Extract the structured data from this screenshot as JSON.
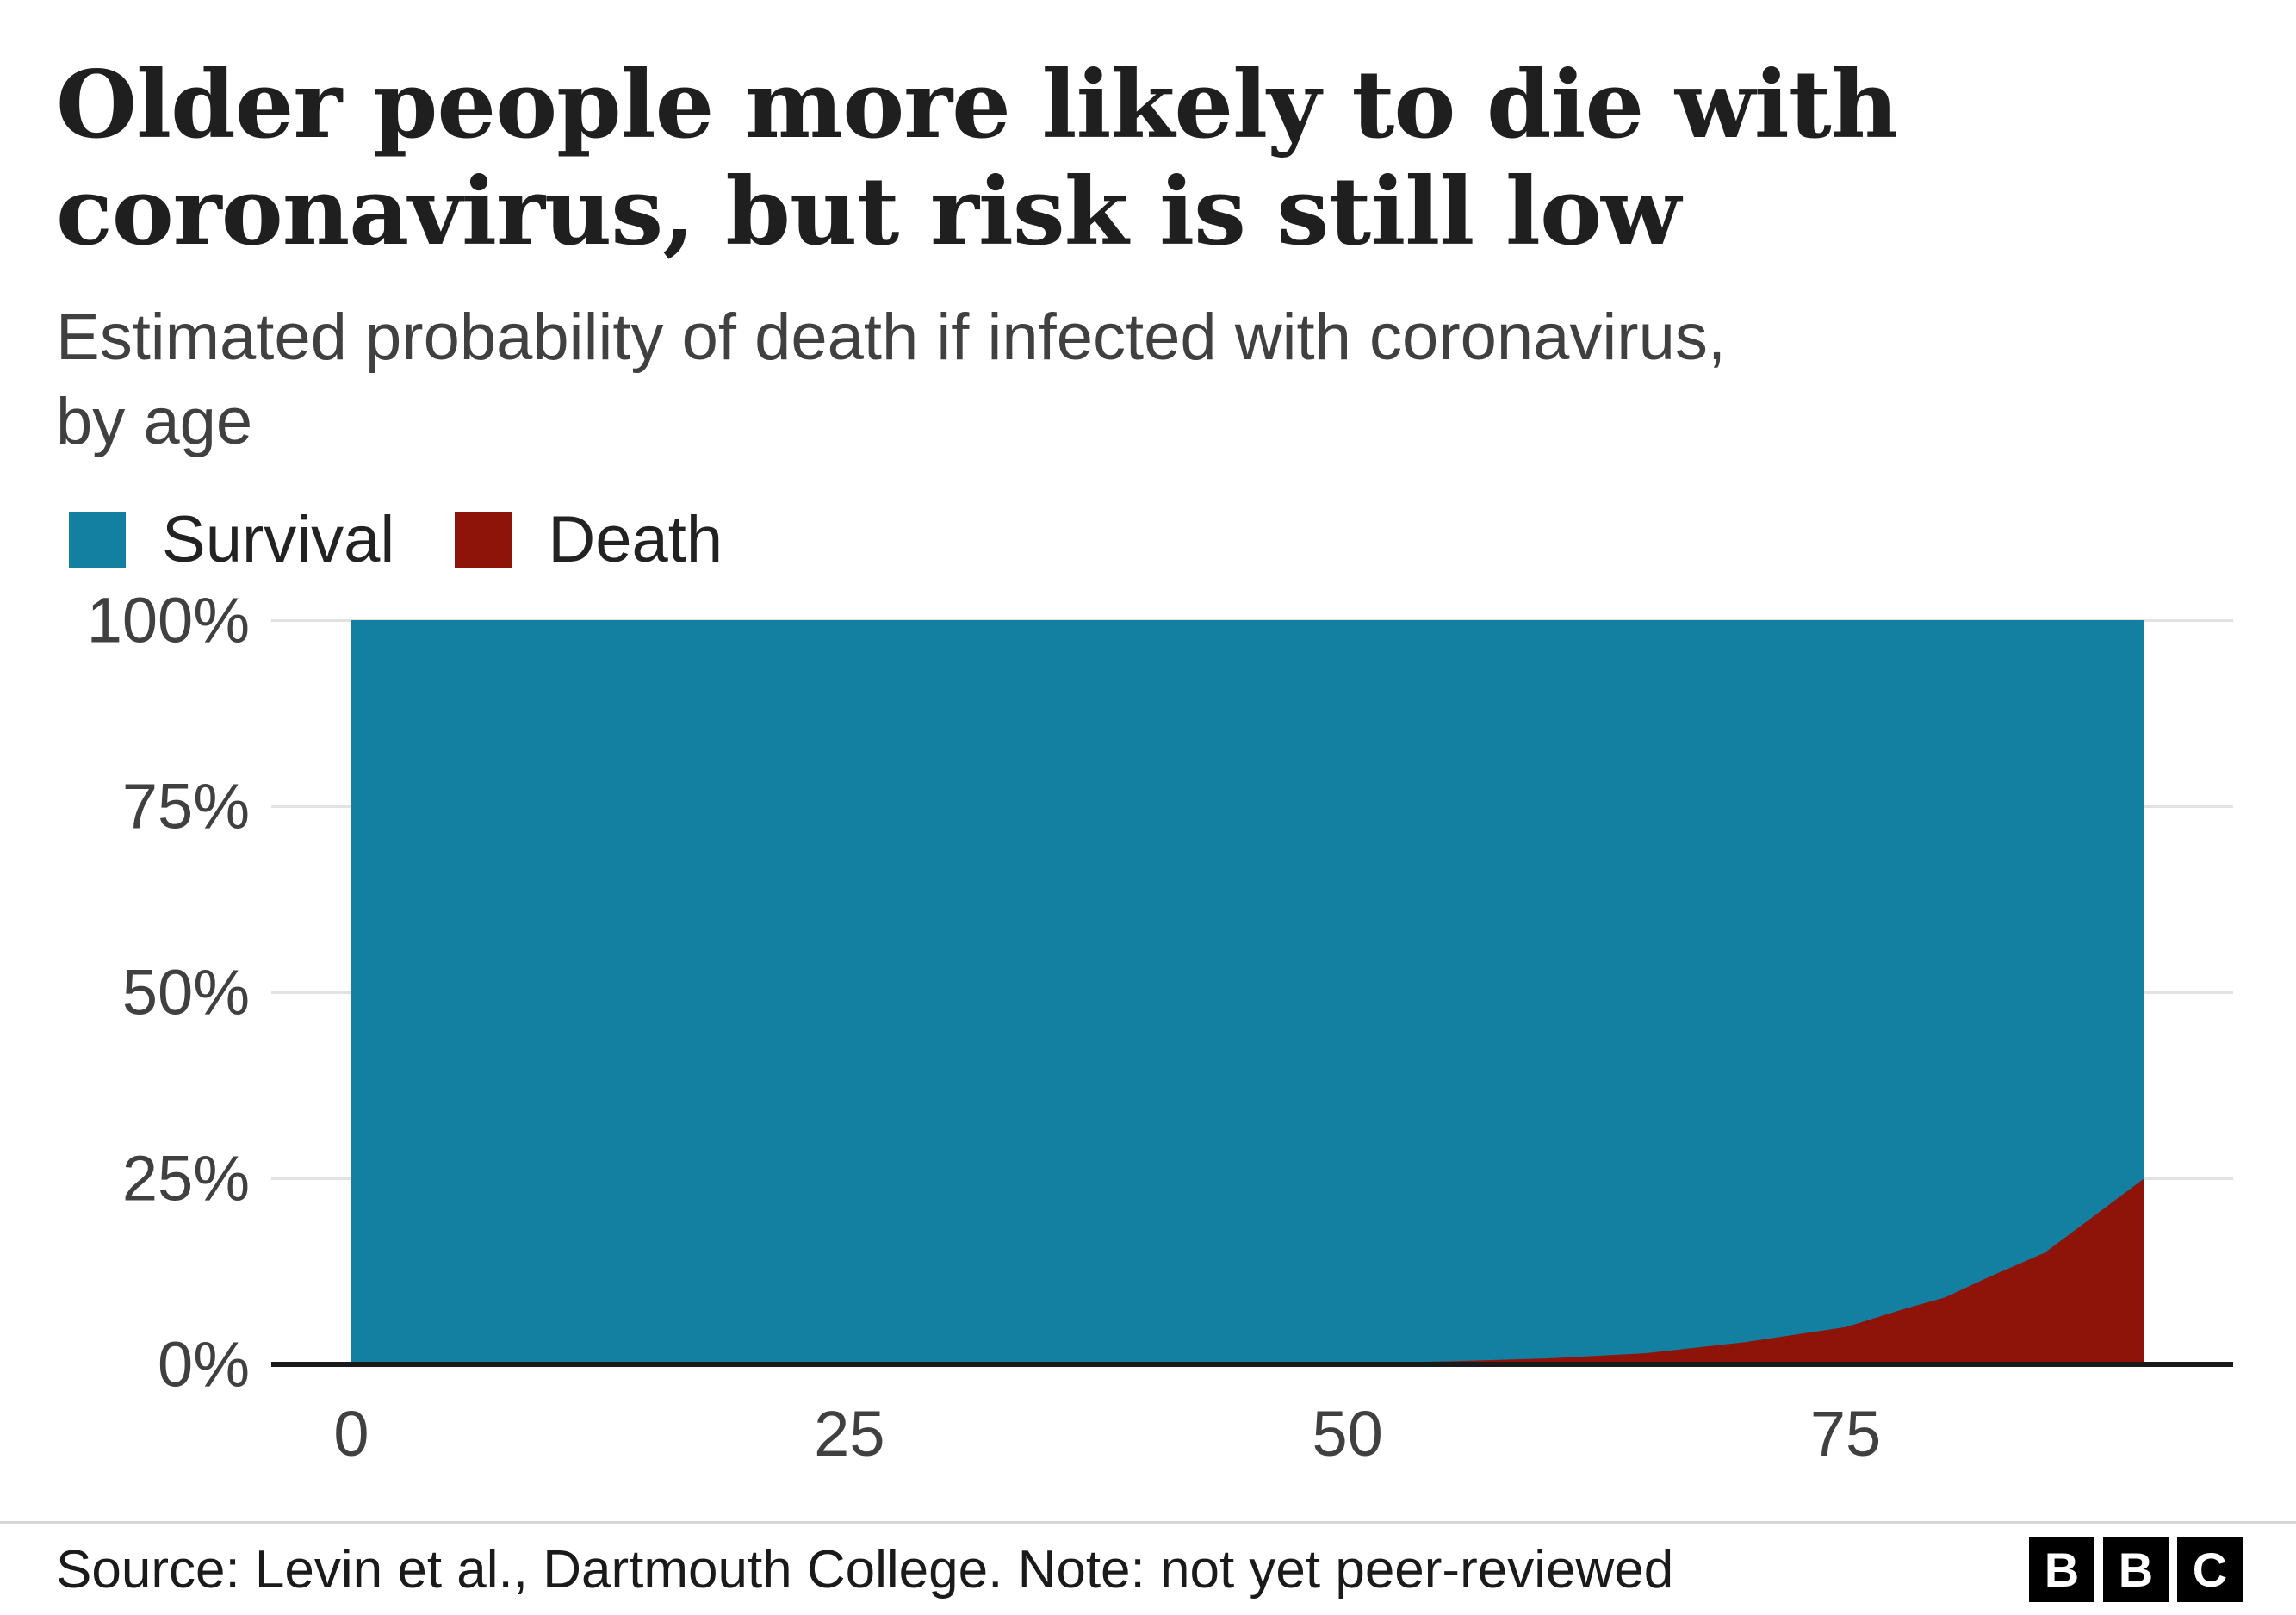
{
  "header": {
    "title": "Older people more likely to die with\ncoronavirus, but risk is still low",
    "subtitle": "Estimated probability of death if infected with coronavirus,\nby age"
  },
  "legend": [
    {
      "label": "Survival",
      "color": "#1380A1"
    },
    {
      "label": "Death",
      "color": "#8e1309"
    }
  ],
  "chart_data": {
    "type": "area",
    "stacked": true,
    "title": "Older people more likely to die with coronavirus, but risk is still low",
    "subtitle": "Estimated probability of death if infected with coronavirus, by age",
    "xlabel": "",
    "ylabel": "",
    "grid": true,
    "legend_position": "top",
    "x_range": [
      0,
      90
    ],
    "y_range": [
      0,
      100
    ],
    "x_ticks": [
      0,
      25,
      50,
      75
    ],
    "y_tick_values": [
      0,
      25,
      50,
      75,
      100
    ],
    "y_ticks": [
      "0%",
      "25%",
      "50%",
      "75%",
      "100%"
    ],
    "stack_order": [
      "Death",
      "Survival"
    ],
    "x": [
      0,
      10,
      20,
      30,
      40,
      45,
      50,
      55,
      60,
      65,
      70,
      75,
      78,
      80,
      82,
      85,
      87,
      89,
      90
    ],
    "series": [
      {
        "name": "Survival",
        "color": "#1380A1",
        "values": [
          100,
          100,
          99.99,
          99.98,
          99.95,
          99.9,
          99.8,
          99.6,
          99.2,
          98.5,
          97,
          95,
          92.5,
          91,
          88.5,
          85,
          81,
          77,
          75
        ]
      },
      {
        "name": "Death",
        "color": "#8e1309",
        "values": [
          0,
          0,
          0.01,
          0.02,
          0.05,
          0.1,
          0.2,
          0.4,
          0.8,
          1.5,
          3,
          5,
          7.5,
          9,
          11.5,
          15,
          19,
          23,
          25
        ]
      }
    ]
  },
  "footer": {
    "source": "Source: Levin et al., Dartmouth College. Note: not yet peer-reviewed",
    "logo_letters": [
      "B",
      "B",
      "C"
    ]
  }
}
